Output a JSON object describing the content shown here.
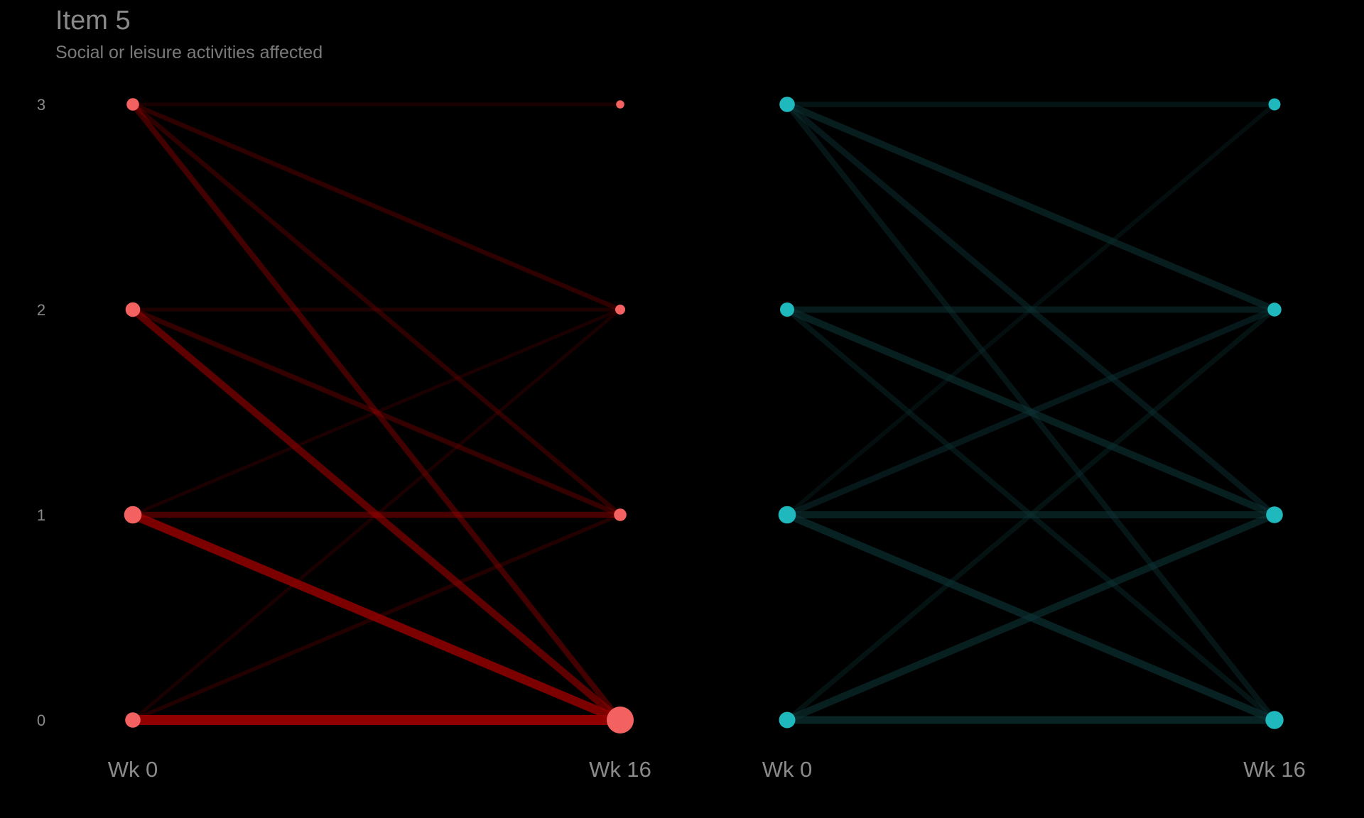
{
  "title": "Item 5",
  "subtitle": "Social or leisure activities affected",
  "chart_data": [
    {
      "type": "line",
      "chart_kind": "slopegraph",
      "x_labels": [
        "Wk 0",
        "Wk 16"
      ],
      "y_ticks": [
        0,
        1,
        2,
        3
      ],
      "ylim": [
        0,
        3
      ],
      "grid": false,
      "color": "#f46161",
      "line_color": "#990000",
      "points": {
        "Wk 0": [
          {
            "y": 0,
            "weight": 0.45
          },
          {
            "y": 1,
            "weight": 0.55
          },
          {
            "y": 2,
            "weight": 0.42
          },
          {
            "y": 3,
            "weight": 0.32
          }
        ],
        "Wk 16": [
          {
            "y": 0,
            "weight": 1.0
          },
          {
            "y": 1,
            "weight": 0.32
          },
          {
            "y": 2,
            "weight": 0.2
          },
          {
            "y": 3,
            "weight": 0.12
          }
        ]
      },
      "transitions": [
        {
          "from": 0,
          "to": 0,
          "weight": 1.0
        },
        {
          "from": 1,
          "to": 0,
          "weight": 0.85
        },
        {
          "from": 1,
          "to": 1,
          "weight": 0.45
        },
        {
          "from": 2,
          "to": 0,
          "weight": 0.6
        },
        {
          "from": 2,
          "to": 1,
          "weight": 0.3
        },
        {
          "from": 2,
          "to": 2,
          "weight": 0.12
        },
        {
          "from": 3,
          "to": 0,
          "weight": 0.4
        },
        {
          "from": 3,
          "to": 1,
          "weight": 0.25
        },
        {
          "from": 3,
          "to": 2,
          "weight": 0.25
        },
        {
          "from": 3,
          "to": 3,
          "weight": 0.08
        },
        {
          "from": 0,
          "to": 1,
          "weight": 0.15
        },
        {
          "from": 0,
          "to": 2,
          "weight": 0.08
        },
        {
          "from": 1,
          "to": 2,
          "weight": 0.08
        }
      ]
    },
    {
      "type": "line",
      "chart_kind": "slopegraph",
      "x_labels": [
        "Wk 0",
        "Wk 16"
      ],
      "y_ticks": [
        0,
        1,
        2,
        3
      ],
      "ylim": [
        0,
        3
      ],
      "grid": false,
      "color": "#1fb8bd",
      "line_color": "#0d3335",
      "points": {
        "Wk 0": [
          {
            "y": 0,
            "weight": 0.5
          },
          {
            "y": 1,
            "weight": 0.55
          },
          {
            "y": 2,
            "weight": 0.4
          },
          {
            "y": 3,
            "weight": 0.45
          }
        ],
        "Wk 16": [
          {
            "y": 0,
            "weight": 0.58
          },
          {
            "y": 1,
            "weight": 0.52
          },
          {
            "y": 2,
            "weight": 0.38
          },
          {
            "y": 3,
            "weight": 0.3
          }
        ]
      },
      "transitions": [
        {
          "from": 0,
          "to": 0,
          "weight": 0.7
        },
        {
          "from": 0,
          "to": 1,
          "weight": 0.6
        },
        {
          "from": 0,
          "to": 2,
          "weight": 0.3
        },
        {
          "from": 1,
          "to": 0,
          "weight": 0.65
        },
        {
          "from": 1,
          "to": 1,
          "weight": 0.6
        },
        {
          "from": 1,
          "to": 2,
          "weight": 0.45
        },
        {
          "from": 1,
          "to": 3,
          "weight": 0.2
        },
        {
          "from": 2,
          "to": 0,
          "weight": 0.35
        },
        {
          "from": 2,
          "to": 1,
          "weight": 0.6
        },
        {
          "from": 2,
          "to": 2,
          "weight": 0.5
        },
        {
          "from": 3,
          "to": 0,
          "weight": 0.4
        },
        {
          "from": 3,
          "to": 1,
          "weight": 0.45
        },
        {
          "from": 3,
          "to": 2,
          "weight": 0.55
        },
        {
          "from": 3,
          "to": 3,
          "weight": 0.35
        }
      ]
    }
  ]
}
